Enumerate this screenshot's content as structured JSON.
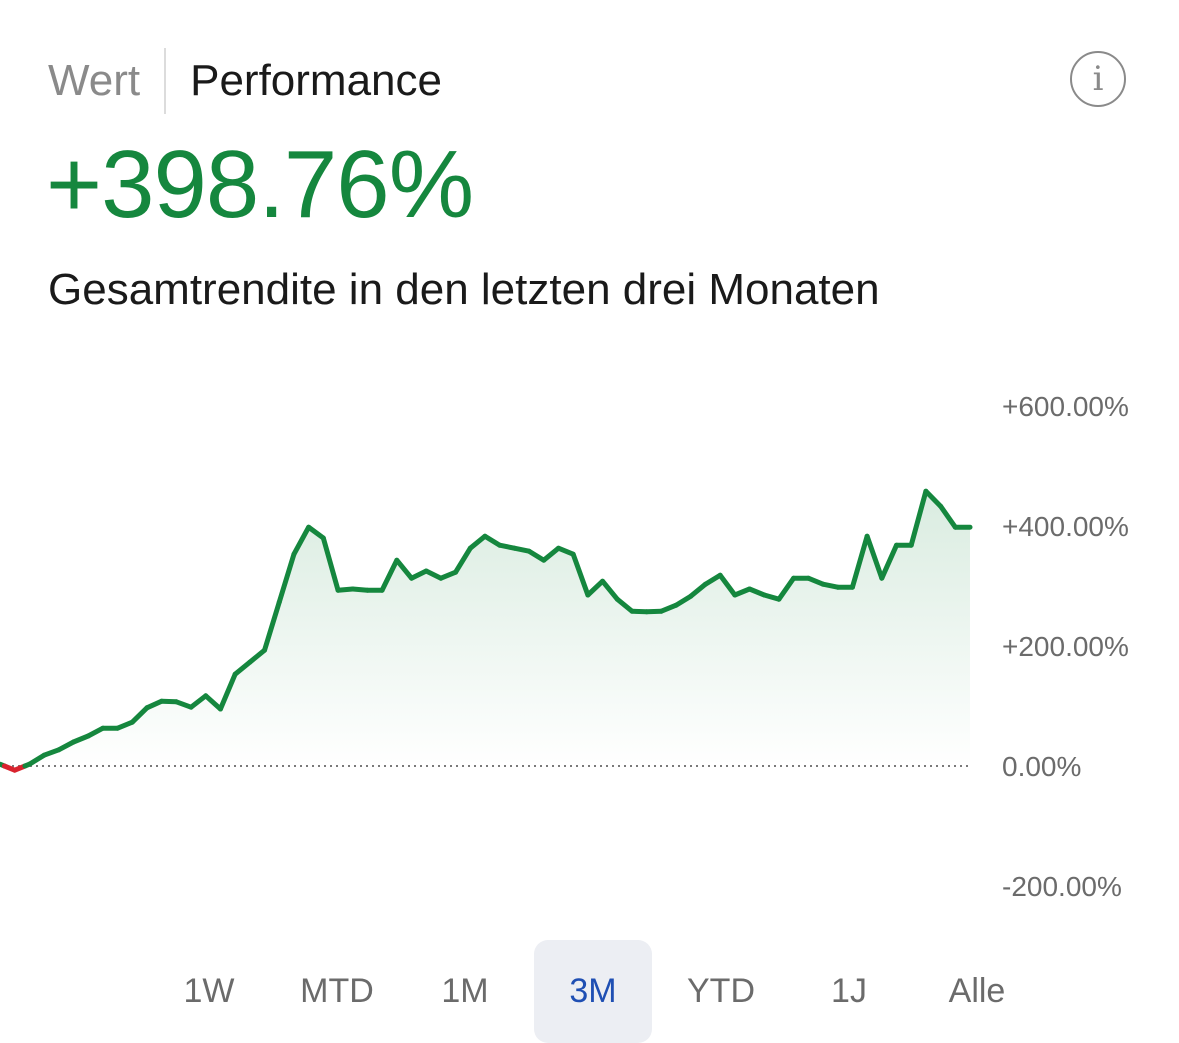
{
  "header": {
    "tabs": [
      {
        "label": "Wert",
        "active": false
      },
      {
        "label": "Performance",
        "active": true
      }
    ],
    "info_icon": "info-icon"
  },
  "summary": {
    "value": "+398.76%",
    "caption": "Gesamtrendite in den letzten drei Monaten",
    "value_color": "#15873e"
  },
  "chart_data": {
    "type": "area",
    "title": "",
    "xlabel": "",
    "ylabel": "",
    "ylim": [
      -200,
      600
    ],
    "y_ticks": [
      "+600.00%",
      "+400.00%",
      "+200.00%",
      "0.00%",
      "-200.00%"
    ],
    "y_tick_values": [
      600,
      400,
      200,
      0,
      -200
    ],
    "baseline": 0,
    "line_color_positive": "#15873e",
    "line_color_negative": "#d9232e",
    "grid": false,
    "series": [
      {
        "values": [
          3,
          -7,
          3,
          18,
          27,
          40,
          50,
          63,
          63,
          73,
          97,
          108,
          107,
          98,
          117,
          95,
          153,
          173,
          193,
          273,
          353,
          398,
          380,
          293,
          295,
          293,
          293,
          343,
          313,
          325,
          313,
          323,
          363,
          383,
          368,
          363,
          358,
          343,
          363,
          353,
          285,
          308,
          278,
          258,
          257,
          258,
          268,
          283,
          303,
          318,
          285,
          295,
          285,
          278,
          313,
          313,
          303,
          298,
          298,
          383,
          313,
          368,
          368,
          458,
          433,
          398,
          398
        ]
      }
    ]
  },
  "range_selector": {
    "options": [
      "1W",
      "MTD",
      "1M",
      "3M",
      "YTD",
      "1J",
      "Alle"
    ],
    "selected": "3M"
  }
}
